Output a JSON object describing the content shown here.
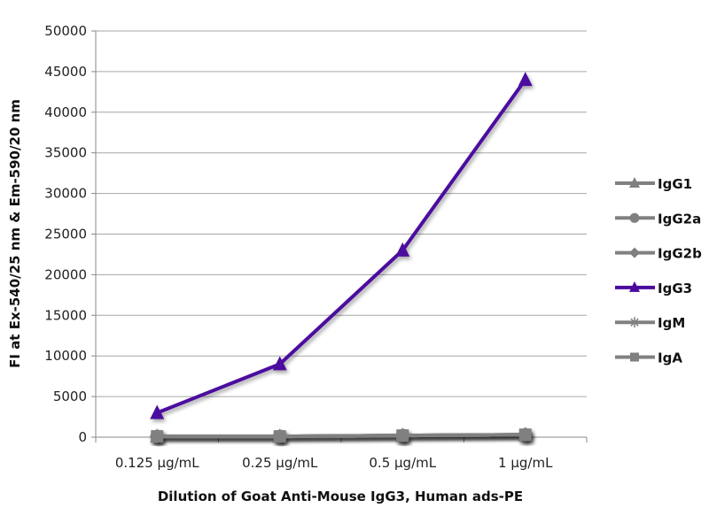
{
  "chart_data": {
    "type": "line",
    "title": "",
    "xlabel": "Dilution of Goat Anti-Mouse IgG3, Human ads-PE",
    "ylabel": "FI at Ex-540/25 nm & Em-590/20 nm",
    "categories": [
      "0.125 µg/mL",
      "0.25 µg/mL",
      "0.5 µg/mL",
      "1 µg/mL"
    ],
    "ylim": [
      0,
      50000
    ],
    "yticks": [
      0,
      5000,
      10000,
      15000,
      20000,
      25000,
      30000,
      35000,
      40000,
      45000,
      50000
    ],
    "grid": true,
    "legend_position": "right",
    "series": [
      {
        "name": "IgG1",
        "values": [
          100,
          100,
          200,
          300
        ],
        "color": "#808080",
        "marker": "triangle"
      },
      {
        "name": "IgG2a",
        "values": [
          100,
          100,
          200,
          300
        ],
        "color": "#808080",
        "marker": "circle"
      },
      {
        "name": "IgG2b",
        "values": [
          100,
          100,
          200,
          300
        ],
        "color": "#808080",
        "marker": "diamond"
      },
      {
        "name": "IgG3",
        "values": [
          3000,
          9000,
          23000,
          44000
        ],
        "color": "#4B0A9E",
        "marker": "triangle"
      },
      {
        "name": "IgM",
        "values": [
          100,
          100,
          200,
          300
        ],
        "color": "#808080",
        "marker": "asterisk"
      },
      {
        "name": "IgA",
        "values": [
          100,
          100,
          200,
          300
        ],
        "color": "#808080",
        "marker": "square"
      }
    ]
  }
}
